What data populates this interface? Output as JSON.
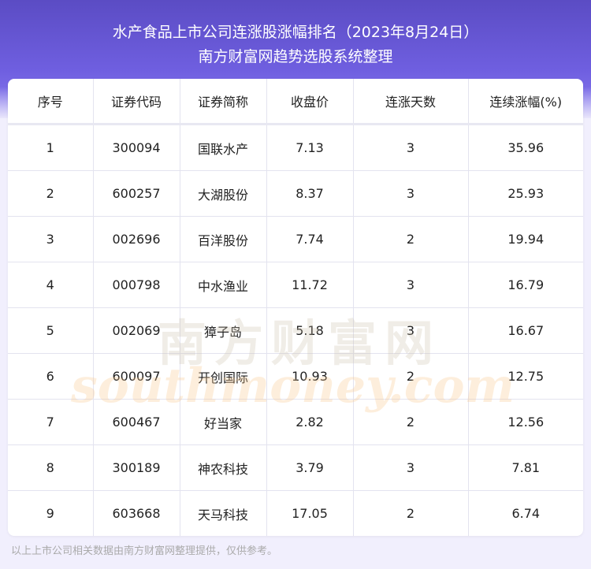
{
  "header": {
    "title": "水产食品上市公司连涨股涨幅排名（2023年8月24日）",
    "subtitle": "南方财富网趋势选股系统整理"
  },
  "table": {
    "columns": [
      "序号",
      "证券代码",
      "证券简称",
      "收盘价",
      "连涨天数",
      "连续涨幅(%)"
    ],
    "rows": [
      [
        "1",
        "300094",
        "国联水产",
        "7.13",
        "3",
        "35.96"
      ],
      [
        "2",
        "600257",
        "大湖股份",
        "8.37",
        "3",
        "25.93"
      ],
      [
        "3",
        "002696",
        "百洋股份",
        "7.74",
        "2",
        "19.94"
      ],
      [
        "4",
        "000798",
        "中水渔业",
        "11.72",
        "3",
        "16.79"
      ],
      [
        "5",
        "002069",
        "獐子岛",
        "5.18",
        "3",
        "16.67"
      ],
      [
        "6",
        "600097",
        "开创国际",
        "10.93",
        "2",
        "12.75"
      ],
      [
        "7",
        "600467",
        "好当家",
        "2.82",
        "2",
        "12.56"
      ],
      [
        "8",
        "300189",
        "神农科技",
        "3.79",
        "3",
        "7.81"
      ],
      [
        "9",
        "603668",
        "天马科技",
        "17.05",
        "2",
        "6.74"
      ]
    ]
  },
  "watermark": {
    "cn": "南方财富网",
    "en": "southmoney.com"
  },
  "footer": "以上上市公司相关数据由南方财富网整理提供，仅供参考。",
  "colors": {
    "banner": "#6a5ad8",
    "background": "#f1effd"
  }
}
